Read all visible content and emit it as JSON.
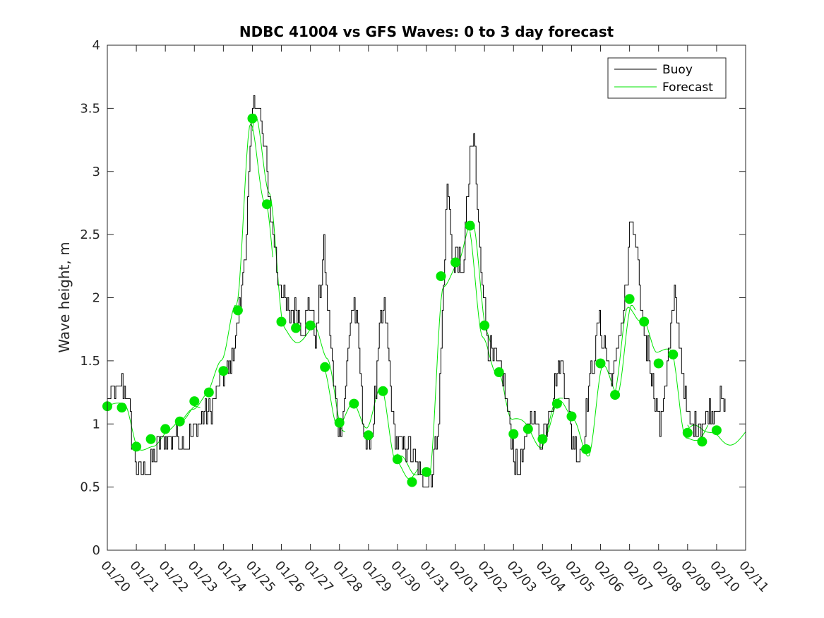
{
  "chart_data": {
    "type": "line",
    "title": "NDBC 41004 vs GFS Waves: 0 to 3 day forecast",
    "xlabel": "",
    "ylabel": "Wave height, m",
    "ylim": [
      0,
      4
    ],
    "xlim": [
      0,
      22
    ],
    "grid": false,
    "legend_position": "top-right",
    "legend": [
      "Buoy",
      "Forecast"
    ],
    "colors": {
      "buoy": "#000000",
      "forecast": "#00e600",
      "axis": "#262626"
    },
    "y_ticks": [
      0,
      0.5,
      1,
      1.5,
      2,
      2.5,
      3,
      3.5,
      4
    ],
    "y_tick_labels": [
      "0",
      "0.5",
      "1",
      "1.5",
      "2",
      "2.5",
      "3",
      "3.5",
      "4"
    ],
    "x_ticks": [
      0,
      1,
      2,
      3,
      4,
      5,
      6,
      7,
      8,
      9,
      10,
      11,
      12,
      13,
      14,
      15,
      16,
      17,
      18,
      19,
      20,
      21,
      22
    ],
    "x_tick_labels": [
      "01/20",
      "01/21",
      "01/22",
      "01/23",
      "01/24",
      "01/25",
      "01/26",
      "01/27",
      "01/28",
      "01/29",
      "01/30",
      "01/31",
      "02/01",
      "02/02",
      "02/03",
      "02/04",
      "02/05",
      "02/06",
      "02/07",
      "02/08",
      "02/09",
      "02/10",
      "02/11"
    ],
    "buoy_anchors": [
      [
        0,
        1.2
      ],
      [
        0.3,
        1.25
      ],
      [
        0.5,
        1.3
      ],
      [
        0.7,
        1.2
      ],
      [
        0.85,
        0.9
      ],
      [
        0.95,
        0.7
      ],
      [
        1.1,
        0.6
      ],
      [
        1.5,
        0.65
      ],
      [
        1.8,
        0.85
      ],
      [
        2.3,
        0.9
      ],
      [
        2.7,
        0.85
      ],
      [
        3.0,
        0.95
      ],
      [
        3.3,
        1.05
      ],
      [
        3.6,
        1.1
      ],
      [
        3.8,
        1.3
      ],
      [
        4.1,
        1.4
      ],
      [
        4.3,
        1.5
      ],
      [
        4.5,
        1.8
      ],
      [
        4.6,
        2.0
      ],
      [
        4.8,
        2.6
      ],
      [
        5.0,
        3.5
      ],
      [
        5.1,
        3.6
      ],
      [
        5.25,
        3.45
      ],
      [
        5.4,
        3.2
      ],
      [
        5.55,
        2.9
      ],
      [
        5.7,
        2.5
      ],
      [
        5.85,
        2.2
      ],
      [
        6.0,
        2.05
      ],
      [
        6.3,
        1.85
      ],
      [
        6.5,
        1.9
      ],
      [
        6.7,
        1.75
      ],
      [
        6.9,
        1.9
      ],
      [
        7.0,
        1.95
      ],
      [
        7.1,
        1.8
      ],
      [
        7.2,
        1.7
      ],
      [
        7.3,
        2.0
      ],
      [
        7.45,
        2.4
      ],
      [
        7.6,
        1.9
      ],
      [
        7.8,
        1.3
      ],
      [
        7.9,
        1.1
      ],
      [
        8.0,
        0.9
      ],
      [
        8.15,
        1.2
      ],
      [
        8.3,
        1.6
      ],
      [
        8.4,
        1.9
      ],
      [
        8.5,
        2.0
      ],
      [
        8.65,
        1.6
      ],
      [
        8.8,
        1.05
      ],
      [
        8.95,
        0.8
      ],
      [
        9.1,
        0.9
      ],
      [
        9.3,
        1.4
      ],
      [
        9.4,
        1.8
      ],
      [
        9.55,
        1.9
      ],
      [
        9.7,
        1.5
      ],
      [
        9.85,
        1.0
      ],
      [
        10.0,
        0.8
      ],
      [
        10.2,
        0.85
      ],
      [
        10.4,
        0.8
      ],
      [
        10.6,
        0.7
      ],
      [
        10.8,
        0.55
      ],
      [
        11.0,
        0.5
      ],
      [
        11.2,
        0.65
      ],
      [
        11.4,
        1.0
      ],
      [
        11.5,
        1.6
      ],
      [
        11.6,
        2.2
      ],
      [
        11.7,
        2.9
      ],
      [
        11.8,
        2.6
      ],
      [
        11.95,
        2.2
      ],
      [
        12.05,
        2.4
      ],
      [
        12.2,
        2.1
      ],
      [
        12.35,
        2.6
      ],
      [
        12.45,
        2.9
      ],
      [
        12.55,
        3.2
      ],
      [
        12.65,
        3.25
      ],
      [
        12.75,
        2.7
      ],
      [
        12.9,
        2.2
      ],
      [
        13.0,
        1.9
      ],
      [
        13.15,
        1.6
      ],
      [
        13.35,
        1.5
      ],
      [
        13.6,
        1.4
      ],
      [
        13.8,
        1.1
      ],
      [
        14.0,
        0.75
      ],
      [
        14.15,
        0.65
      ],
      [
        14.3,
        0.7
      ],
      [
        14.5,
        1.0
      ],
      [
        14.65,
        1.15
      ],
      [
        14.8,
        0.95
      ],
      [
        15.0,
        0.9
      ],
      [
        15.2,
        1.1
      ],
      [
        15.4,
        1.3
      ],
      [
        15.6,
        1.5
      ],
      [
        15.8,
        1.3
      ],
      [
        16.0,
        0.9
      ],
      [
        16.2,
        0.75
      ],
      [
        16.4,
        0.85
      ],
      [
        16.6,
        1.3
      ],
      [
        16.8,
        1.6
      ],
      [
        16.95,
        1.85
      ],
      [
        17.1,
        1.65
      ],
      [
        17.3,
        1.4
      ],
      [
        17.5,
        1.45
      ],
      [
        17.7,
        1.8
      ],
      [
        17.9,
        2.1
      ],
      [
        18.05,
        2.65
      ],
      [
        18.2,
        2.4
      ],
      [
        18.35,
        2.0
      ],
      [
        18.5,
        1.7
      ],
      [
        18.7,
        1.5
      ],
      [
        18.9,
        1.2
      ],
      [
        19.05,
        0.95
      ],
      [
        19.2,
        1.3
      ],
      [
        19.4,
        1.7
      ],
      [
        19.55,
        2.0
      ],
      [
        19.7,
        1.7
      ],
      [
        19.9,
        1.2
      ],
      [
        20.0,
        1.0
      ],
      [
        20.2,
        0.95
      ],
      [
        20.5,
        1.0
      ],
      [
        20.8,
        1.1
      ],
      [
        21.0,
        1.15
      ],
      [
        21.3,
        1.15
      ]
    ],
    "forecast_dots": [
      [
        0,
        1.14
      ],
      [
        0.5,
        1.13
      ],
      [
        1.0,
        0.82
      ],
      [
        1.5,
        0.88
      ],
      [
        2.0,
        0.96
      ],
      [
        2.5,
        1.02
      ],
      [
        3.0,
        1.18
      ],
      [
        3.5,
        1.25
      ],
      [
        4.0,
        1.42
      ],
      [
        4.5,
        1.9
      ],
      [
        5.0,
        3.42
      ],
      [
        5.5,
        2.74
      ],
      [
        6.0,
        1.81
      ],
      [
        6.5,
        1.76
      ],
      [
        7.0,
        1.78
      ],
      [
        7.5,
        1.45
      ],
      [
        8.0,
        1.01
      ],
      [
        8.5,
        1.16
      ],
      [
        9.0,
        0.91
      ],
      [
        9.5,
        1.26
      ],
      [
        10.0,
        0.72
      ],
      [
        10.5,
        0.54
      ],
      [
        11.0,
        0.62
      ],
      [
        11.5,
        2.17
      ],
      [
        12.0,
        2.28
      ],
      [
        12.5,
        2.57
      ],
      [
        13.0,
        1.78
      ],
      [
        13.5,
        1.41
      ],
      [
        14.0,
        0.92
      ],
      [
        14.5,
        0.96
      ],
      [
        15.0,
        0.88
      ],
      [
        15.5,
        1.16
      ],
      [
        16.0,
        1.06
      ],
      [
        16.5,
        0.8
      ],
      [
        17.0,
        1.48
      ],
      [
        17.5,
        1.23
      ],
      [
        18.0,
        1.99
      ],
      [
        18.5,
        1.81
      ],
      [
        19.0,
        1.48
      ],
      [
        19.5,
        1.55
      ],
      [
        20.0,
        0.93
      ],
      [
        20.5,
        0.86
      ],
      [
        21.0,
        0.95
      ]
    ],
    "forecast_run_count": 9
  }
}
